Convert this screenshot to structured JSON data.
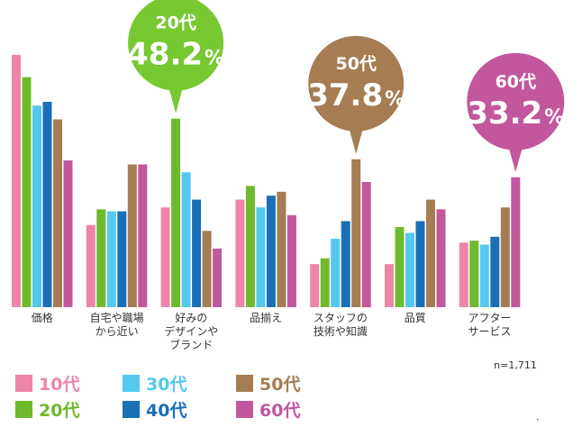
{
  "chart_data": {
    "type": "bar",
    "categories": [
      [
        "価格"
      ],
      [
        "自宅や職場",
        "から近い"
      ],
      [
        "好みの",
        "デザインや",
        "ブランド"
      ],
      [
        "品揃え"
      ],
      [
        "スタッフの",
        "技術や知識"
      ],
      [
        "品質"
      ],
      [
        "アフター",
        "サービス"
      ]
    ],
    "series": [
      {
        "name": "10代",
        "color": "#ee85a6",
        "values": [
          64.5,
          21.0,
          25.5,
          27.5,
          11.0,
          11.0,
          16.5
        ]
      },
      {
        "name": "20代",
        "color": "#6fba2c",
        "values": [
          58.8,
          25.0,
          48.2,
          31.0,
          12.5,
          20.5,
          17.0
        ]
      },
      {
        "name": "30代",
        "color": "#55c8ef",
        "values": [
          51.5,
          24.5,
          34.5,
          25.5,
          17.5,
          19.0,
          16.0
        ]
      },
      {
        "name": "40代",
        "color": "#1a6fb7",
        "values": [
          52.5,
          24.5,
          27.5,
          28.5,
          22.0,
          22.0,
          18.0
        ]
      },
      {
        "name": "50代",
        "color": "#a67c52",
        "values": [
          48.0,
          36.5,
          19.5,
          29.5,
          37.8,
          27.5,
          25.5
        ]
      },
      {
        "name": "60代",
        "color": "#c2579e",
        "values": [
          37.5,
          36.5,
          15.0,
          23.5,
          32.0,
          25.0,
          33.2
        ]
      }
    ],
    "ylim": [
      0,
      70
    ],
    "grid": false,
    "legend_position": "bottom-left",
    "callouts": [
      {
        "category_index": 2,
        "series_index": 1,
        "age": "20代",
        "value": "48.2",
        "unit": "%",
        "color": "#78c832"
      },
      {
        "category_index": 4,
        "series_index": 4,
        "age": "50代",
        "value": "37.8",
        "unit": "%",
        "color": "#a67c52"
      },
      {
        "category_index": 6,
        "series_index": 5,
        "age": "60代",
        "value": "33.2",
        "unit": "%",
        "color": "#c2579e"
      }
    ],
    "note": "n=1,711"
  }
}
